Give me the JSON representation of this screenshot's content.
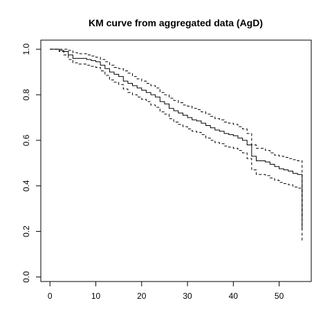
{
  "chart_data": {
    "type": "line",
    "title": "KM curve from aggregated data (AgD)",
    "xlabel": "",
    "ylabel": "",
    "xlim": [
      -2,
      57
    ],
    "ylim": [
      -0.02,
      1.04
    ],
    "x_ticks": [
      "0",
      "10",
      "20",
      "30",
      "40",
      "50"
    ],
    "x_tick_values": [
      0,
      10,
      20,
      30,
      40,
      50
    ],
    "y_ticks": [
      "0.0",
      "0.2",
      "0.4",
      "0.6",
      "0.8",
      "1.0"
    ],
    "y_tick_values": [
      0.0,
      0.2,
      0.4,
      0.6,
      0.8,
      1.0
    ],
    "grid": false,
    "step": true,
    "series": [
      {
        "style": "solid",
        "x": [
          0,
          2,
          3,
          4,
          5,
          6,
          7,
          8,
          9,
          10,
          11,
          12,
          13,
          14,
          15,
          16,
          17,
          18,
          19,
          20,
          21,
          22,
          23,
          24,
          25,
          26,
          27,
          28,
          29,
          30,
          31,
          32,
          33,
          34,
          35,
          36,
          37,
          38,
          39,
          40,
          41,
          42,
          43,
          44,
          45,
          46,
          47,
          48,
          49,
          50,
          51,
          52,
          53,
          54,
          55,
          55
        ],
        "y": [
          1.0,
          0.995,
          0.99,
          0.975,
          0.96,
          0.96,
          0.96,
          0.955,
          0.95,
          0.945,
          0.93,
          0.915,
          0.9,
          0.89,
          0.88,
          0.86,
          0.85,
          0.84,
          0.83,
          0.82,
          0.81,
          0.8,
          0.79,
          0.77,
          0.76,
          0.74,
          0.73,
          0.72,
          0.71,
          0.7,
          0.69,
          0.685,
          0.675,
          0.665,
          0.655,
          0.645,
          0.64,
          0.63,
          0.625,
          0.62,
          0.61,
          0.6,
          0.58,
          0.53,
          0.51,
          0.51,
          0.505,
          0.495,
          0.485,
          0.475,
          0.47,
          0.465,
          0.455,
          0.45,
          0.45,
          0.21
        ]
      },
      {
        "style": "dashed",
        "x": [
          0,
          2,
          3,
          4,
          5,
          6,
          7,
          8,
          9,
          10,
          11,
          12,
          13,
          14,
          15,
          16,
          17,
          18,
          19,
          20,
          21,
          22,
          23,
          24,
          25,
          26,
          27,
          28,
          29,
          30,
          31,
          32,
          33,
          34,
          35,
          36,
          37,
          38,
          39,
          40,
          41,
          42,
          43,
          44,
          45,
          46,
          47,
          48,
          49,
          50,
          51,
          52,
          53,
          54,
          55,
          55
        ],
        "y": [
          1.0,
          1.0,
          1.0,
          0.995,
          0.985,
          0.98,
          0.98,
          0.975,
          0.97,
          0.965,
          0.955,
          0.945,
          0.93,
          0.92,
          0.915,
          0.905,
          0.895,
          0.88,
          0.87,
          0.86,
          0.85,
          0.84,
          0.83,
          0.81,
          0.8,
          0.785,
          0.775,
          0.765,
          0.755,
          0.75,
          0.74,
          0.735,
          0.725,
          0.715,
          0.705,
          0.695,
          0.69,
          0.68,
          0.675,
          0.67,
          0.66,
          0.65,
          0.63,
          0.58,
          0.565,
          0.565,
          0.555,
          0.545,
          0.535,
          0.53,
          0.525,
          0.52,
          0.515,
          0.51,
          0.5,
          0.26
        ]
      },
      {
        "style": "dashed",
        "x": [
          0,
          2,
          3,
          4,
          5,
          6,
          7,
          8,
          9,
          10,
          11,
          12,
          13,
          14,
          15,
          16,
          17,
          18,
          19,
          20,
          21,
          22,
          23,
          24,
          25,
          26,
          27,
          28,
          29,
          30,
          31,
          32,
          33,
          34,
          35,
          36,
          37,
          38,
          39,
          40,
          41,
          42,
          43,
          44,
          45,
          46,
          47,
          48,
          49,
          50,
          51,
          52,
          53,
          54,
          55,
          55
        ],
        "y": [
          1.0,
          0.99,
          0.975,
          0.955,
          0.94,
          0.935,
          0.935,
          0.93,
          0.925,
          0.92,
          0.905,
          0.885,
          0.865,
          0.855,
          0.845,
          0.825,
          0.81,
          0.8,
          0.79,
          0.78,
          0.77,
          0.755,
          0.745,
          0.725,
          0.715,
          0.695,
          0.68,
          0.67,
          0.66,
          0.65,
          0.64,
          0.635,
          0.625,
          0.61,
          0.6,
          0.59,
          0.585,
          0.575,
          0.57,
          0.565,
          0.555,
          0.545,
          0.52,
          0.47,
          0.45,
          0.45,
          0.445,
          0.435,
          0.425,
          0.415,
          0.41,
          0.405,
          0.395,
          0.39,
          0.385,
          0.16
        ]
      }
    ]
  }
}
